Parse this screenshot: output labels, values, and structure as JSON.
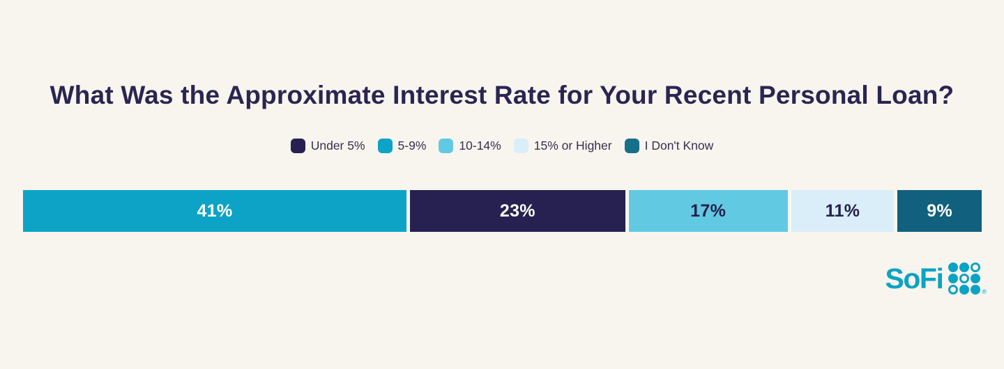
{
  "page": {
    "background_color": "#f8f5ef"
  },
  "title": {
    "text": "What Was the Approximate Interest Rate for Your Recent Personal Loan?",
    "color": "#2b2551"
  },
  "legend": {
    "items": [
      {
        "label": "Under 5%",
        "color": "#262150"
      },
      {
        "label": "5-9%",
        "color": "#0da3c6"
      },
      {
        "label": "10-14%",
        "color": "#62c9e2"
      },
      {
        "label": "15% or Higher",
        "color": "#d9eef8"
      },
      {
        "label": "I Don't Know",
        "color": "#17708a"
      }
    ]
  },
  "chart_data": {
    "type": "bar",
    "variant": "horizontal-stacked",
    "title": "What Was the Approximate Interest Rate for Your Recent Personal Loan?",
    "unit": "percent",
    "legend_position": "top-center",
    "categories": [
      "5-9%",
      "Under 5%",
      "10-14%",
      "15% or Higher",
      "I Don't Know"
    ],
    "values": [
      41,
      23,
      17,
      11,
      9
    ],
    "segments": [
      {
        "category": "5-9%",
        "value": 41,
        "display": "41%",
        "color": "#0da3c6",
        "text_color": "#ffffff"
      },
      {
        "category": "Under 5%",
        "value": 23,
        "display": "23%",
        "color": "#262150",
        "text_color": "#ffffff"
      },
      {
        "category": "10-14%",
        "value": 17,
        "display": "17%",
        "color": "#62c9e2",
        "text_color": "#24204d"
      },
      {
        "category": "15% or Higher",
        "value": 11,
        "display": "11%",
        "color": "#d9eef8",
        "text_color": "#24204d"
      },
      {
        "category": "I Don't Know",
        "value": 9,
        "display": "9%",
        "color": "#11607d",
        "text_color": "#ffffff"
      }
    ]
  },
  "logo": {
    "text": "SoFi",
    "color": "#0ba3c4",
    "mark": "®"
  }
}
